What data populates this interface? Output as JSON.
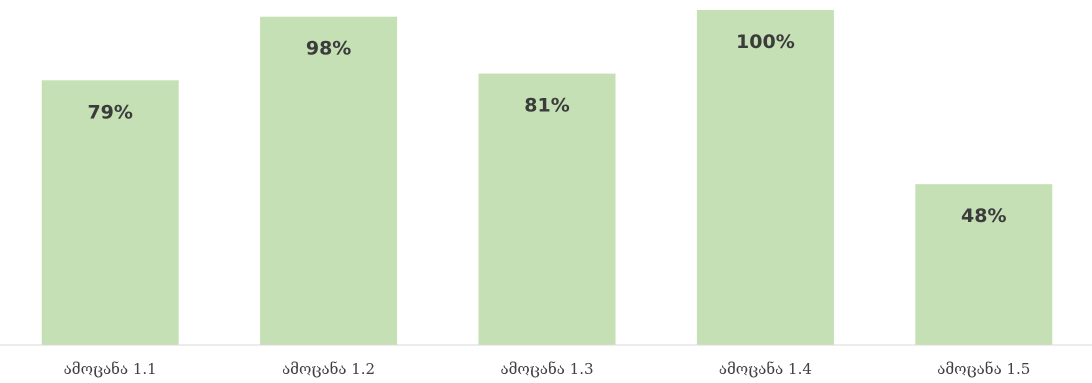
{
  "chart_data": {
    "type": "bar",
    "categories": [
      "ამოცანა 1.1",
      "ამოცანა 1.2",
      "ამოცანა 1.3",
      "ამოცანა 1.4",
      "ამოცანა 1.5"
    ],
    "values": [
      79,
      98,
      81,
      100,
      48
    ],
    "data_labels": [
      "79%",
      "98%",
      "81%",
      "100%",
      "48%"
    ],
    "value_unit": "%",
    "ylim": [
      0,
      100
    ],
    "title": "",
    "xlabel": "",
    "ylabel": "",
    "grid": false,
    "legend": "none",
    "colors": {
      "bar": "#c5e0b4",
      "label": "#3b3b3b",
      "axis": "#d9d9d9",
      "category_text": "#404040"
    }
  }
}
